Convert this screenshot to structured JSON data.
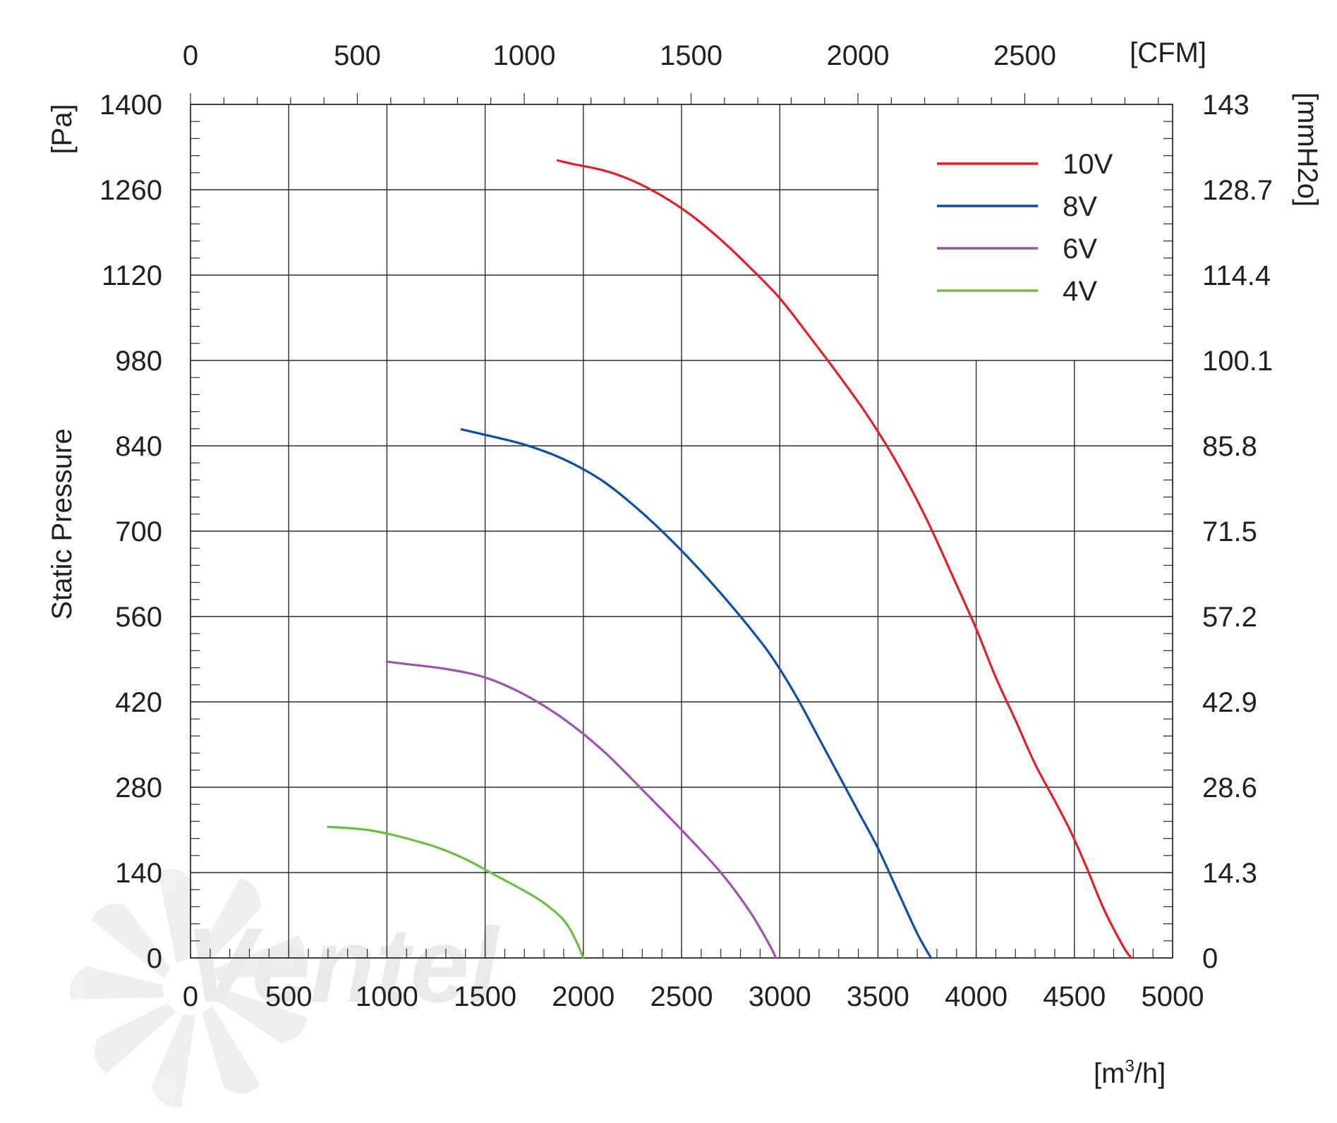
{
  "chart_data": {
    "type": "line",
    "title": "",
    "xlabel": "[m3/h]",
    "xlabel_main": "[m",
    "xlabel_sup": "3",
    "xlabel_tail": "/h]",
    "ylabel": "Static Pressure",
    "ylabel_unit": "[Pa]",
    "x2label": "[CFM]",
    "y2label": "[mmH2o]",
    "xlim": [
      0,
      5000
    ],
    "ylim": [
      0,
      1400
    ],
    "x_ticks": [
      "0",
      "500",
      "1000",
      "1500",
      "2000",
      "2500",
      "3000",
      "3500",
      "4000",
      "4500",
      "5000"
    ],
    "y_ticks": [
      "0",
      "140",
      "280",
      "420",
      "560",
      "700",
      "840",
      "980",
      "1120",
      "1260",
      "1400"
    ],
    "cfm_ticks": [
      {
        "value": 0,
        "label": "0"
      },
      {
        "value": 500,
        "label": "500"
      },
      {
        "value": 1000,
        "label": "1000"
      },
      {
        "value": 1500,
        "label": "1500"
      },
      {
        "value": 2000,
        "label": "2000"
      },
      {
        "value": 2500,
        "label": "2500"
      }
    ],
    "cfm_to_m3h": 1.699,
    "mmh2o_ticks": [
      "0",
      "14.3",
      "28.6",
      "42.9",
      "57.2",
      "71.5",
      "85.8",
      "100.1",
      "114.4",
      "128.7",
      "143"
    ],
    "grid": true,
    "legend_position": "top-right",
    "watermark_text": "Ventel",
    "series": [
      {
        "name": "10V",
        "color": "#e0202a",
        "points": [
          [
            1870,
            1308
          ],
          [
            1950,
            1302
          ],
          [
            2100,
            1292
          ],
          [
            2250,
            1275
          ],
          [
            2400,
            1250
          ],
          [
            2550,
            1218
          ],
          [
            2700,
            1178
          ],
          [
            2850,
            1132
          ],
          [
            3000,
            1082
          ],
          [
            3150,
            1020
          ],
          [
            3300,
            956
          ],
          [
            3450,
            888
          ],
          [
            3600,
            810
          ],
          [
            3750,
            718
          ],
          [
            3900,
            612
          ],
          [
            4000,
            540
          ],
          [
            4100,
            460
          ],
          [
            4200,
            390
          ],
          [
            4300,
            318
          ],
          [
            4400,
            258
          ],
          [
            4480,
            208
          ],
          [
            4560,
            150
          ],
          [
            4650,
            80
          ],
          [
            4750,
            18
          ],
          [
            4790,
            0
          ]
        ]
      },
      {
        "name": "8V",
        "color": "#0d4ea0",
        "points": [
          [
            1380,
            867
          ],
          [
            1500,
            858
          ],
          [
            1700,
            842
          ],
          [
            1900,
            818
          ],
          [
            2100,
            782
          ],
          [
            2300,
            730
          ],
          [
            2500,
            668
          ],
          [
            2700,
            598
          ],
          [
            2900,
            520
          ],
          [
            3000,
            474
          ],
          [
            3100,
            420
          ],
          [
            3200,
            360
          ],
          [
            3300,
            300
          ],
          [
            3400,
            240
          ],
          [
            3500,
            180
          ],
          [
            3600,
            110
          ],
          [
            3700,
            40
          ],
          [
            3770,
            0
          ]
        ]
      },
      {
        "name": "6V",
        "color": "#9b55a8",
        "points": [
          [
            1000,
            486
          ],
          [
            1100,
            482
          ],
          [
            1300,
            474
          ],
          [
            1500,
            460
          ],
          [
            1700,
            432
          ],
          [
            1900,
            392
          ],
          [
            2100,
            340
          ],
          [
            2300,
            276
          ],
          [
            2500,
            210
          ],
          [
            2700,
            140
          ],
          [
            2850,
            75
          ],
          [
            2950,
            20
          ],
          [
            2980,
            0
          ]
        ]
      },
      {
        "name": "4V",
        "color": "#6cbd45",
        "points": [
          [
            700,
            215
          ],
          [
            800,
            213
          ],
          [
            900,
            210
          ],
          [
            1000,
            204
          ],
          [
            1100,
            196
          ],
          [
            1250,
            182
          ],
          [
            1400,
            162
          ],
          [
            1550,
            136
          ],
          [
            1700,
            110
          ],
          [
            1800,
            90
          ],
          [
            1900,
            62
          ],
          [
            1960,
            30
          ],
          [
            2000,
            0
          ]
        ]
      }
    ]
  }
}
